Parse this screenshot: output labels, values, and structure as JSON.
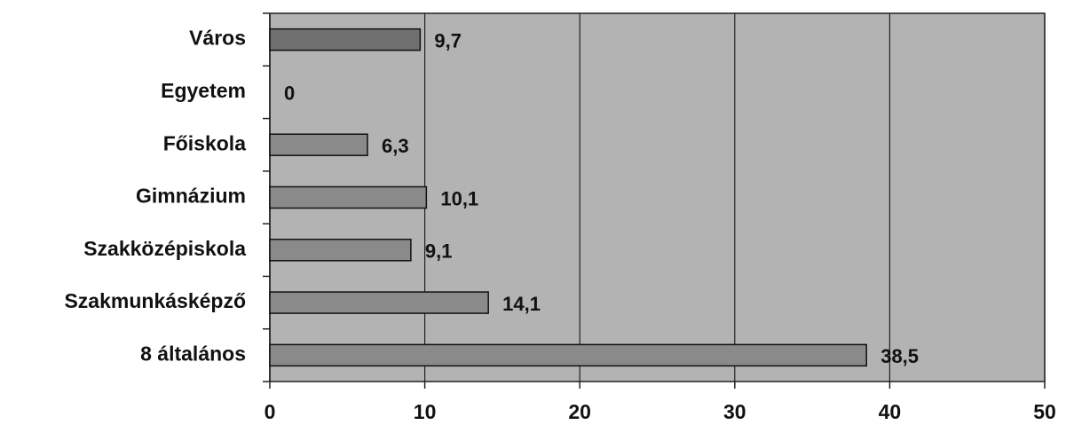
{
  "chart_data": {
    "type": "hbar",
    "categories": [
      "Város",
      "Egyetem",
      "Főiskola",
      "Gimnázium",
      "Szakközépiskola",
      "Szakmunkásképző",
      "8 általános"
    ],
    "values": [
      9.7,
      0,
      6.3,
      10.1,
      9.1,
      14.1,
      38.5
    ],
    "value_labels": [
      "9,7",
      "0",
      "6,3",
      "10,1",
      "9,1",
      "14,1",
      "38,5"
    ],
    "colors": [
      "#6f6f6f",
      "#8a8a8a",
      "#8a8a8a",
      "#8a8a8a",
      "#8a8a8a",
      "#8a8a8a",
      "#8a8a8a"
    ],
    "xlim": [
      0,
      50
    ],
    "xticks": [
      0,
      10,
      20,
      30,
      40,
      50
    ],
    "grid": true
  }
}
